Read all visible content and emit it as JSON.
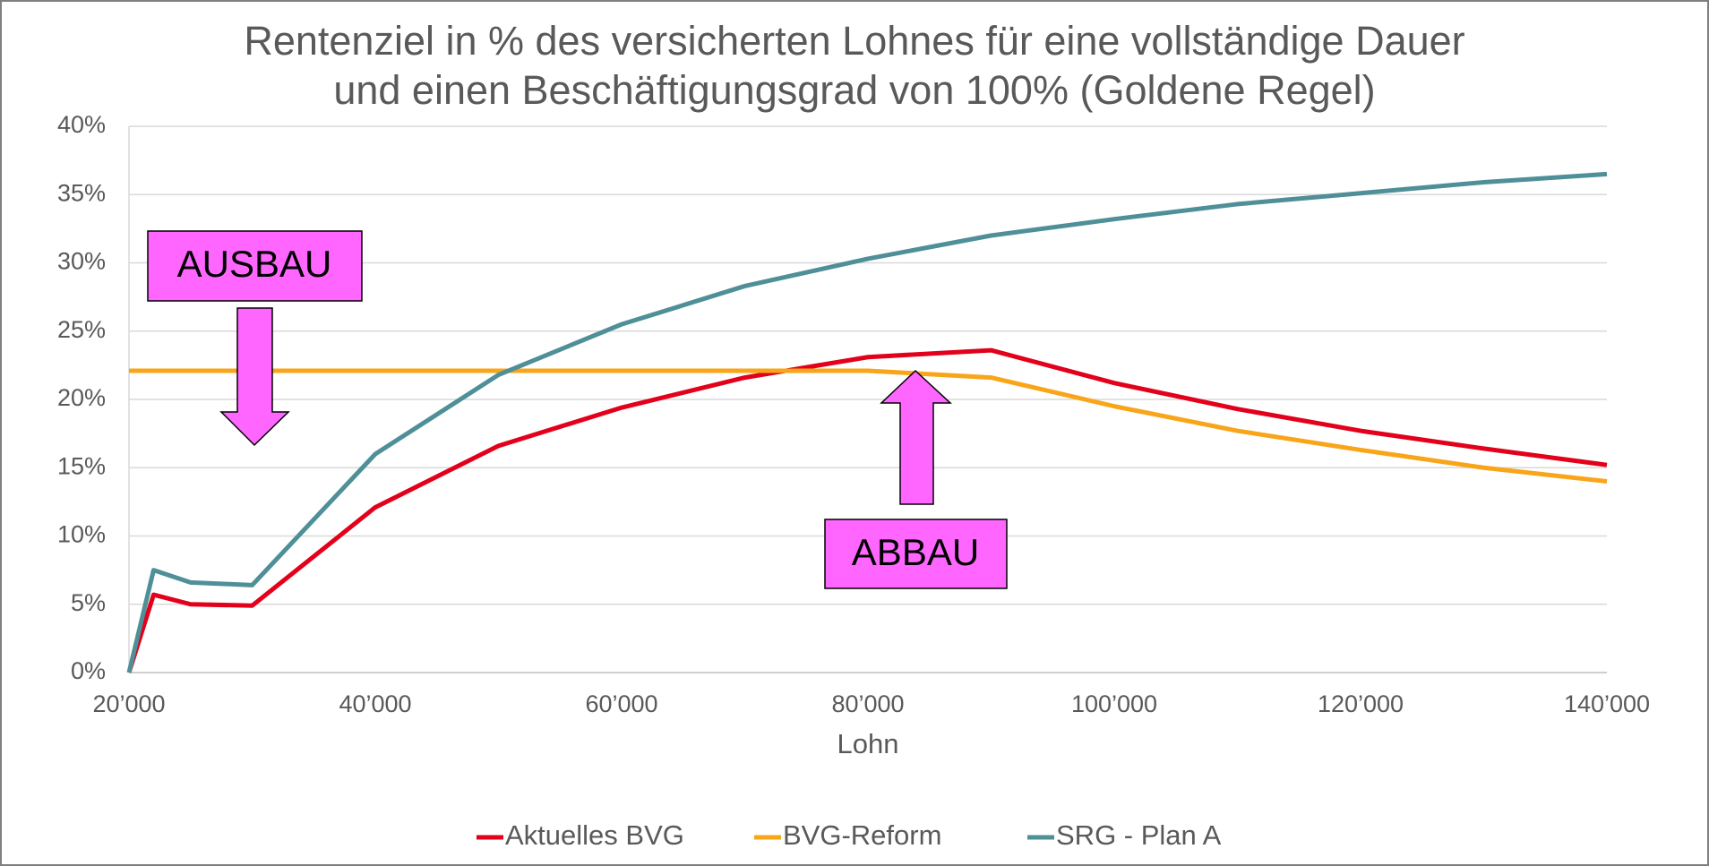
{
  "chart_data": {
    "type": "line",
    "title": [
      "Rentenziel in % des versicherten Lohnes für eine vollständige Dauer",
      "und einen Beschäftigungsgrad von 100% (Goldene Regel)"
    ],
    "xlabel": "Lohn",
    "x": [
      20000,
      22000,
      25000,
      30000,
      40000,
      50000,
      60000,
      70000,
      80000,
      90000,
      100000,
      110000,
      120000,
      130000,
      140000
    ],
    "series": [
      {
        "name": "Aktuelles BVG",
        "color": "#e2001a",
        "values": [
          0,
          5.7,
          5.0,
          4.9,
          12.1,
          16.6,
          19.4,
          21.6,
          23.1,
          23.6,
          21.2,
          19.3,
          17.7,
          16.4,
          15.2
        ]
      },
      {
        "name": "BVG-Reform",
        "color": "#f9a51a",
        "values": [
          22.1,
          22.1,
          22.1,
          22.1,
          22.1,
          22.1,
          22.1,
          22.1,
          22.1,
          21.6,
          19.5,
          17.7,
          16.3,
          15.0,
          14.0
        ]
      },
      {
        "name": "SRG - Plan A",
        "color": "#4f8f98",
        "values": [
          0,
          7.5,
          6.6,
          6.4,
          16.0,
          21.8,
          25.5,
          28.3,
          30.3,
          32.0,
          33.2,
          34.3,
          35.1,
          35.9,
          36.5
        ]
      }
    ],
    "xlim": [
      20000,
      140000
    ],
    "xticks": [
      {
        "value": 20000,
        "label": "20’000"
      },
      {
        "value": 40000,
        "label": "40’000"
      },
      {
        "value": 60000,
        "label": "60’000"
      },
      {
        "value": 80000,
        "label": "80’000"
      },
      {
        "value": 100000,
        "label": "100’000"
      },
      {
        "value": 120000,
        "label": "120’000"
      },
      {
        "value": 140000,
        "label": "140’000"
      }
    ],
    "ylim": [
      0,
      40
    ],
    "yticks": [
      {
        "value": 0,
        "label": "0%"
      },
      {
        "value": 5,
        "label": "5%"
      },
      {
        "value": 10,
        "label": "10%"
      },
      {
        "value": 15,
        "label": "15%"
      },
      {
        "value": 20,
        "label": "20%"
      },
      {
        "value": 25,
        "label": "25%"
      },
      {
        "value": 30,
        "label": "30%"
      },
      {
        "value": 35,
        "label": "35%"
      },
      {
        "value": 40,
        "label": "40%"
      }
    ],
    "grid": true,
    "legend": "bottom",
    "annotations": [
      "AUSBAU",
      "ABBAU"
    ]
  }
}
